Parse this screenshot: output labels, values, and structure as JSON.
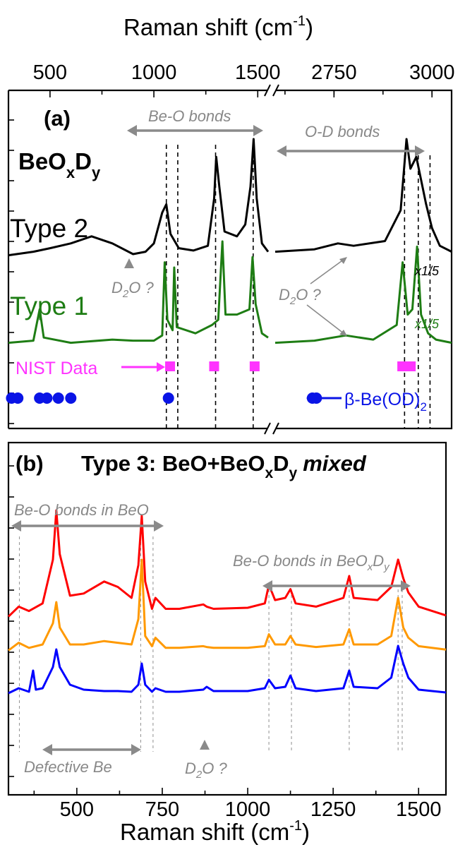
{
  "chart_data": [
    {
      "panel": "a",
      "type": "line",
      "panel_label": "(a)",
      "compound": "BeOxDy",
      "xlabel_top": "Raman shift (cm-1)",
      "x_axis_break": true,
      "x_segments": [
        {
          "xlim": [
            300,
            1550
          ],
          "ticks": [
            "500",
            "1000",
            "1500"
          ]
        },
        {
          "xlim": [
            2600,
            3050
          ],
          "ticks": [
            "2750",
            "3000"
          ]
        }
      ],
      "series": [
        {
          "name": "Type 2",
          "color": "#000000",
          "seg1": [
            [
              300,
              0.02
            ],
            [
              420,
              0.05
            ],
            [
              500,
              0.08
            ],
            [
              600,
              0.12
            ],
            [
              700,
              0.18
            ],
            [
              800,
              0.12
            ],
            [
              900,
              0.03
            ],
            [
              960,
              0.05
            ],
            [
              1000,
              0.12
            ],
            [
              1040,
              0.38
            ],
            [
              1060,
              0.45
            ],
            [
              1080,
              0.2
            ],
            [
              1120,
              0.08
            ],
            [
              1190,
              0.06
            ],
            [
              1260,
              0.1
            ],
            [
              1290,
              0.5
            ],
            [
              1300,
              0.85
            ],
            [
              1315,
              0.6
            ],
            [
              1340,
              0.22
            ],
            [
              1400,
              0.18
            ],
            [
              1440,
              0.28
            ],
            [
              1465,
              0.6
            ],
            [
              1480,
              1.0
            ],
            [
              1495,
              0.5
            ],
            [
              1520,
              0.12
            ],
            [
              1550,
              0.05
            ]
          ],
          "seg2": [
            [
              2600,
              0.05
            ],
            [
              2700,
              0.07
            ],
            [
              2760,
              0.12
            ],
            [
              2800,
              0.1
            ],
            [
              2880,
              0.14
            ],
            [
              2920,
              0.4
            ],
            [
              2935,
              1.0
            ],
            [
              2945,
              0.75
            ],
            [
              2960,
              0.85
            ],
            [
              2985,
              0.45
            ],
            [
              3000,
              0.25
            ],
            [
              3020,
              0.1
            ],
            [
              3050,
              0.05
            ]
          ],
          "annotation": "x1/5"
        },
        {
          "name": "Type 1",
          "color": "#1e7d14",
          "seg1": [
            [
              300,
              0.03
            ],
            [
              420,
              0.05
            ],
            [
              450,
              0.35
            ],
            [
              470,
              0.08
            ],
            [
              600,
              0.03
            ],
            [
              800,
              0.06
            ],
            [
              900,
              0.05
            ],
            [
              1000,
              0.05
            ],
            [
              1040,
              0.1
            ],
            [
              1052,
              0.8
            ],
            [
              1065,
              0.25
            ],
            [
              1090,
              0.15
            ],
            [
              1098,
              0.75
            ],
            [
              1110,
              0.18
            ],
            [
              1200,
              0.12
            ],
            [
              1280,
              0.2
            ],
            [
              1310,
              0.25
            ],
            [
              1330,
              1.0
            ],
            [
              1345,
              0.3
            ],
            [
              1400,
              0.3
            ],
            [
              1460,
              0.35
            ],
            [
              1475,
              0.85
            ],
            [
              1490,
              0.4
            ],
            [
              1520,
              0.12
            ],
            [
              1550,
              0.08
            ]
          ],
          "seg2": [
            [
              2600,
              0.03
            ],
            [
              2700,
              0.05
            ],
            [
              2780,
              0.1
            ],
            [
              2850,
              0.06
            ],
            [
              2910,
              0.2
            ],
            [
              2925,
              0.8
            ],
            [
              2938,
              0.3
            ],
            [
              2950,
              0.35
            ],
            [
              2962,
              0.95
            ],
            [
              2972,
              0.3
            ],
            [
              2990,
              0.12
            ],
            [
              3010,
              0.06
            ],
            [
              3050,
              0.03
            ]
          ],
          "annotation": "x1/5"
        }
      ],
      "nist_data": {
        "label": "NIST Data",
        "color": "#ff33ff",
        "positions": [
          1078,
          1290,
          1485,
          2935
        ]
      },
      "beta_be_od2": {
        "label": "β-Be(OD)2",
        "color": "#0a14e6",
        "positions_seg1": [
          315,
          345,
          450,
          485,
          540,
          600,
          1070
        ],
        "positions_seg2": [
          2695,
          2705
        ]
      },
      "dashed_lines_seg1": [
        1060,
        1115,
        1297,
        1478
      ],
      "dashed_lines_seg2": [
        2930,
        2965,
        2995
      ],
      "annotations": [
        "Be-O  bonds",
        "O-D bonds",
        "D2O ?",
        "D2O ?",
        "Type 2",
        "Type 1"
      ]
    },
    {
      "panel": "b",
      "type": "line",
      "panel_label": "(b)",
      "title": "Type 3: BeO+BeOxDy mixed",
      "xlabel": "Raman shift (cm-1)",
      "xlim": [
        300,
        1580
      ],
      "xticks": [
        500,
        750,
        1000,
        1250,
        1500
      ],
      "series": [
        {
          "name": "red",
          "color": "#ff0000",
          "offset": 2,
          "x": [
            300,
            330,
            360,
            400,
            430,
            440,
            450,
            480,
            520,
            580,
            620,
            660,
            680,
            690,
            700,
            720,
            730,
            760,
            800,
            870,
            880,
            900,
            1000,
            1050,
            1062,
            1080,
            1110,
            1125,
            1140,
            1200,
            1280,
            1297,
            1310,
            1380,
            1420,
            1440,
            1455,
            1470,
            1500,
            1580
          ],
          "y": [
            0.03,
            0.12,
            0.08,
            0.15,
            0.55,
            1.0,
            0.6,
            0.22,
            0.24,
            0.35,
            0.3,
            0.2,
            0.5,
            0.95,
            0.35,
            0.1,
            0.2,
            0.1,
            0.1,
            0.14,
            0.12,
            0.1,
            0.11,
            0.15,
            0.32,
            0.18,
            0.2,
            0.28,
            0.15,
            0.12,
            0.2,
            0.4,
            0.2,
            0.18,
            0.3,
            0.55,
            0.38,
            0.25,
            0.12,
            0.04
          ]
        },
        {
          "name": "orange",
          "color": "#ff9900",
          "offset": 1,
          "x": [
            300,
            330,
            360,
            400,
            430,
            440,
            450,
            480,
            520,
            580,
            620,
            660,
            680,
            690,
            700,
            720,
            730,
            760,
            800,
            870,
            880,
            900,
            1000,
            1050,
            1062,
            1080,
            1110,
            1125,
            1140,
            1200,
            1280,
            1297,
            1310,
            1380,
            1420,
            1440,
            1455,
            1470,
            1500,
            1580
          ],
          "y": [
            0.03,
            0.12,
            0.06,
            0.1,
            0.35,
            0.6,
            0.3,
            0.1,
            0.1,
            0.14,
            0.12,
            0.1,
            0.4,
            1.1,
            0.2,
            0.08,
            0.18,
            0.06,
            0.06,
            0.08,
            0.07,
            0.06,
            0.06,
            0.08,
            0.22,
            0.1,
            0.1,
            0.2,
            0.1,
            0.07,
            0.1,
            0.28,
            0.1,
            0.1,
            0.2,
            0.65,
            0.3,
            0.18,
            0.08,
            0.04
          ]
        },
        {
          "name": "blue",
          "color": "#0000ff",
          "offset": 0,
          "x": [
            300,
            330,
            360,
            372,
            380,
            400,
            430,
            440,
            450,
            480,
            520,
            580,
            620,
            660,
            680,
            690,
            700,
            720,
            730,
            760,
            800,
            870,
            880,
            900,
            1000,
            1050,
            1062,
            1080,
            1110,
            1125,
            1140,
            1200,
            1280,
            1297,
            1310,
            1380,
            1420,
            1440,
            1455,
            1470,
            1500,
            1580
          ],
          "y": [
            0.03,
            0.1,
            0.05,
            0.35,
            0.08,
            0.1,
            0.4,
            0.65,
            0.4,
            0.15,
            0.08,
            0.06,
            0.06,
            0.05,
            0.15,
            0.45,
            0.15,
            0.05,
            0.1,
            0.05,
            0.05,
            0.08,
            0.12,
            0.06,
            0.06,
            0.1,
            0.22,
            0.1,
            0.12,
            0.28,
            0.1,
            0.06,
            0.1,
            0.35,
            0.12,
            0.1,
            0.25,
            0.7,
            0.45,
            0.25,
            0.08,
            0.04
          ]
        }
      ],
      "dashed_lines": [
        332,
        687,
        723,
        1062,
        1128,
        1297,
        1440,
        1452
      ],
      "annotations": [
        "Be-O  bonds in BeO",
        "Be-O  bonds in BeOxDy",
        "Defective Be",
        "D2O ?"
      ]
    }
  ],
  "labels": {
    "top_axis_title": "Raman shift (cm",
    "top_axis_sup": "-1",
    "bottom_axis_title": "Raman shift (cm",
    "bottom_axis_sup": "-1",
    "close_paren": ")",
    "panel_a": "(a)",
    "compound_a_main": "BeO",
    "compound_a_sub1": "x",
    "compound_a_mid": "D",
    "compound_a_sub2": "y",
    "type2": "Type 2",
    "type1": "Type 1",
    "beo_bonds": "Be-O  bonds",
    "od_bonds": "O-D bonds",
    "d2o_left": "D",
    "d2o_sub": "2",
    "d2o_rest": "O ?",
    "x15": "x1/5",
    "nist": "NIST Data",
    "beta": "β",
    "beta_rest": "-Be(OD)",
    "beta_sub": "2",
    "panel_b": "(b)",
    "title_b_main": "Type 3: BeO+BeO",
    "title_b_sub1": "x",
    "title_b_mid": "D",
    "title_b_sub2": "y",
    "title_b_mixed": "mixed",
    "beo_in_beo": "Be-O  bonds in BeO",
    "beo_in_beoxdy_main": "Be-O  bonds in BeO",
    "beo_in_beoxdy_sub1": "x",
    "beo_in_beoxdy_mid": "D",
    "beo_in_beoxdy_sub2": "y",
    "defective": "Defective Be"
  }
}
